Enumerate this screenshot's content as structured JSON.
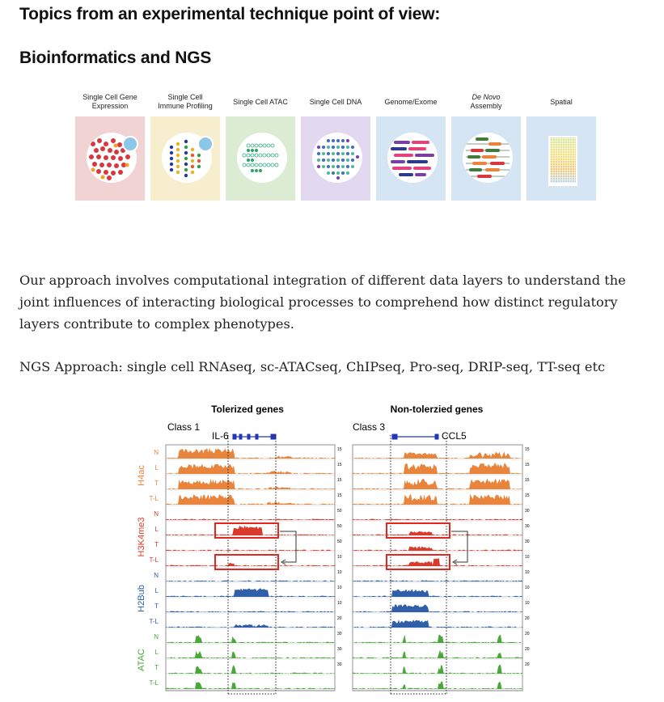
{
  "heading_main": "Topics from an experimental technique point of view:",
  "heading_sub": "Bioinformatics and NGS",
  "technique_panels": [
    {
      "line1": "Single Cell Gene",
      "line2": "Expression",
      "color": "#f2d3d3",
      "italic": false
    },
    {
      "line1": "Single Cell",
      "line2": "Immune Profiling",
      "color": "#f7eecd",
      "italic": false
    },
    {
      "line1": "Single Cell ATAC",
      "line2": "",
      "color": "#dcecd2",
      "italic": false
    },
    {
      "line1": "Single Cell DNA",
      "line2": "",
      "color": "#e2d8ef",
      "italic": false
    },
    {
      "line1": "Genome/Exome",
      "line2": "",
      "color": "#d6e5f4",
      "italic": false
    },
    {
      "line1": "De Novo",
      "line2": "Assembly",
      "color": "#d6e5f4",
      "italic": true
    },
    {
      "line1": "Spatial",
      "line2": "",
      "color": "#d6e5f4",
      "italic": false
    }
  ],
  "paragraph_lines": [
    "Our approach involves computational integration of different data layers to understand the",
    "joint influences of interacting biological processes to comprehend how distinct regulatory",
    "layers contribute to complex phenotypes."
  ],
  "ngs_approach": "NGS Approach: single cell RNAseq, sc-ATACseq, ChIPseq, Pro-seq, DRIP-seq, TT-seq etc",
  "figure": {
    "title_left": "Tolerized genes",
    "title_right": "Non-tolerzied genes",
    "class_left": "Class 1",
    "class_right": "Class 3",
    "gene_left": "IL-6",
    "gene_right": "CCL5",
    "marks": [
      {
        "name": "H4ac",
        "color": "#e8843c"
      },
      {
        "name": "H3K4me3",
        "color": "#d93a2b"
      },
      {
        "name": "H2Bub",
        "color": "#2f5fa8"
      },
      {
        "name": "ATAC",
        "color": "#4aa83b"
      }
    ],
    "conditions": [
      "N",
      "L",
      "T",
      "T-L"
    ],
    "scale_mid": [
      "15",
      "15",
      "15",
      "15",
      "50",
      "50",
      "50",
      "10",
      "10",
      "10",
      "10",
      "20",
      "30",
      "30",
      "30"
    ],
    "scale_right": [
      "15",
      "15",
      "15",
      "15",
      "30",
      "30",
      "30",
      "10",
      "10",
      "10",
      "10",
      "20",
      "20",
      "20",
      "20"
    ],
    "box_color": "#e0281f"
  }
}
